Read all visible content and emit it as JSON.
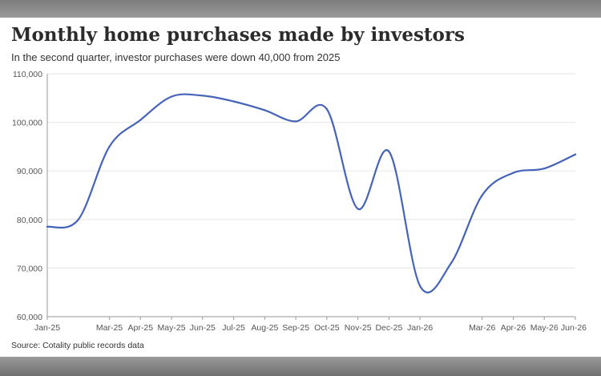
{
  "header": {
    "title": "Monthly home purchases made by investors",
    "subtitle": "In the second quarter, investor purchases were down 40,000 from 2025"
  },
  "footer": {
    "source": "Source: Cotality public records data"
  },
  "colors": {
    "line": "#4563b8",
    "grid": "#e6e6e6",
    "axis": "#9a9a9a",
    "text": "#333333"
  },
  "chart_data": {
    "type": "line",
    "title": "Monthly home purchases made by investors",
    "subtitle": "In the second quarter, investor purchases were down 40,000 from 2025",
    "xlabel": "",
    "ylabel": "",
    "ylim": [
      60000,
      110000
    ],
    "y_ticks": [
      60000,
      70000,
      80000,
      90000,
      100000,
      110000
    ],
    "y_tick_labels": [
      "60,000",
      "70,000",
      "80,000",
      "90,000",
      "100,000",
      "110,000"
    ],
    "x_tick_labels": [
      "Jan-25",
      "Mar-25",
      "Apr-25",
      "May-25",
      "Jun-25",
      "Jul-25",
      "Aug-25",
      "Sep-25",
      "Oct-25",
      "Nov-25",
      "Dec-25",
      "Jan-26",
      "Mar-26",
      "Apr-26",
      "May-26",
      "Jun-26"
    ],
    "grid": true,
    "legend": "none",
    "series": [
      {
        "values": [
          {
            "x": "Jan-25",
            "y": 78500
          },
          {
            "x": "Feb-25",
            "y": 80000
          },
          {
            "x": "Mar-25",
            "y": 95000
          },
          {
            "x": "Apr-25",
            "y": 100500
          },
          {
            "x": "May-25",
            "y": 105300
          },
          {
            "x": "Jun-25",
            "y": 105500
          },
          {
            "x": "Jul-25",
            "y": 104300
          },
          {
            "x": "Aug-25",
            "y": 102500
          },
          {
            "x": "Sep-25",
            "y": 100200
          },
          {
            "x": "Oct-25",
            "y": 102700
          },
          {
            "x": "Nov-25",
            "y": 82200
          },
          {
            "x": "Dec-25",
            "y": 94000
          },
          {
            "x": "Jan-26",
            "y": 66300
          },
          {
            "x": "Feb-26",
            "y": 71000
          },
          {
            "x": "Mar-26",
            "y": 85000
          },
          {
            "x": "Apr-26",
            "y": 89600
          },
          {
            "x": "May-26",
            "y": 90500
          },
          {
            "x": "Jun-26",
            "y": 93400
          }
        ]
      }
    ]
  }
}
